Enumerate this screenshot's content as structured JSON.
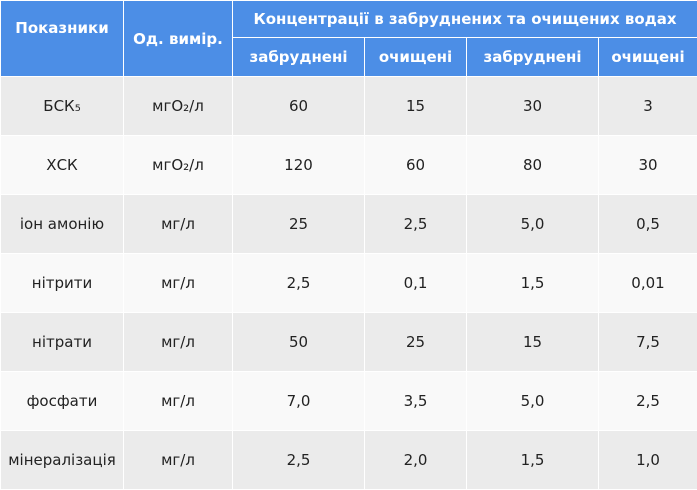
{
  "table": {
    "headers": {
      "indicator": "Показники",
      "unit": "Од. вимір.",
      "group": "Концентрації в забруднених та очищених водах",
      "sub": [
        "забруднені",
        "очищені",
        "забруднені",
        "очищені"
      ]
    },
    "rows": [
      [
        "БСК₅",
        "мгО₂/л",
        "60",
        "15",
        "30",
        "3"
      ],
      [
        "ХСК",
        "мгО₂/л",
        "120",
        "60",
        "80",
        "30"
      ],
      [
        "іон амонію",
        "мг/л",
        "25",
        "2,5",
        "5,0",
        "0,5"
      ],
      [
        "нітрити",
        "мг/л",
        "2,5",
        "0,1",
        "1,5",
        "0,01"
      ],
      [
        "нітрати",
        "мг/л",
        "50",
        "25",
        "15",
        "7,5"
      ],
      [
        "фосфати",
        "мг/л",
        "7,0",
        "3,5",
        "5,0",
        "2,5"
      ],
      [
        "мінералізація",
        "мг/л",
        "2,5",
        "2,0",
        "1,5",
        "1,0"
      ]
    ]
  }
}
